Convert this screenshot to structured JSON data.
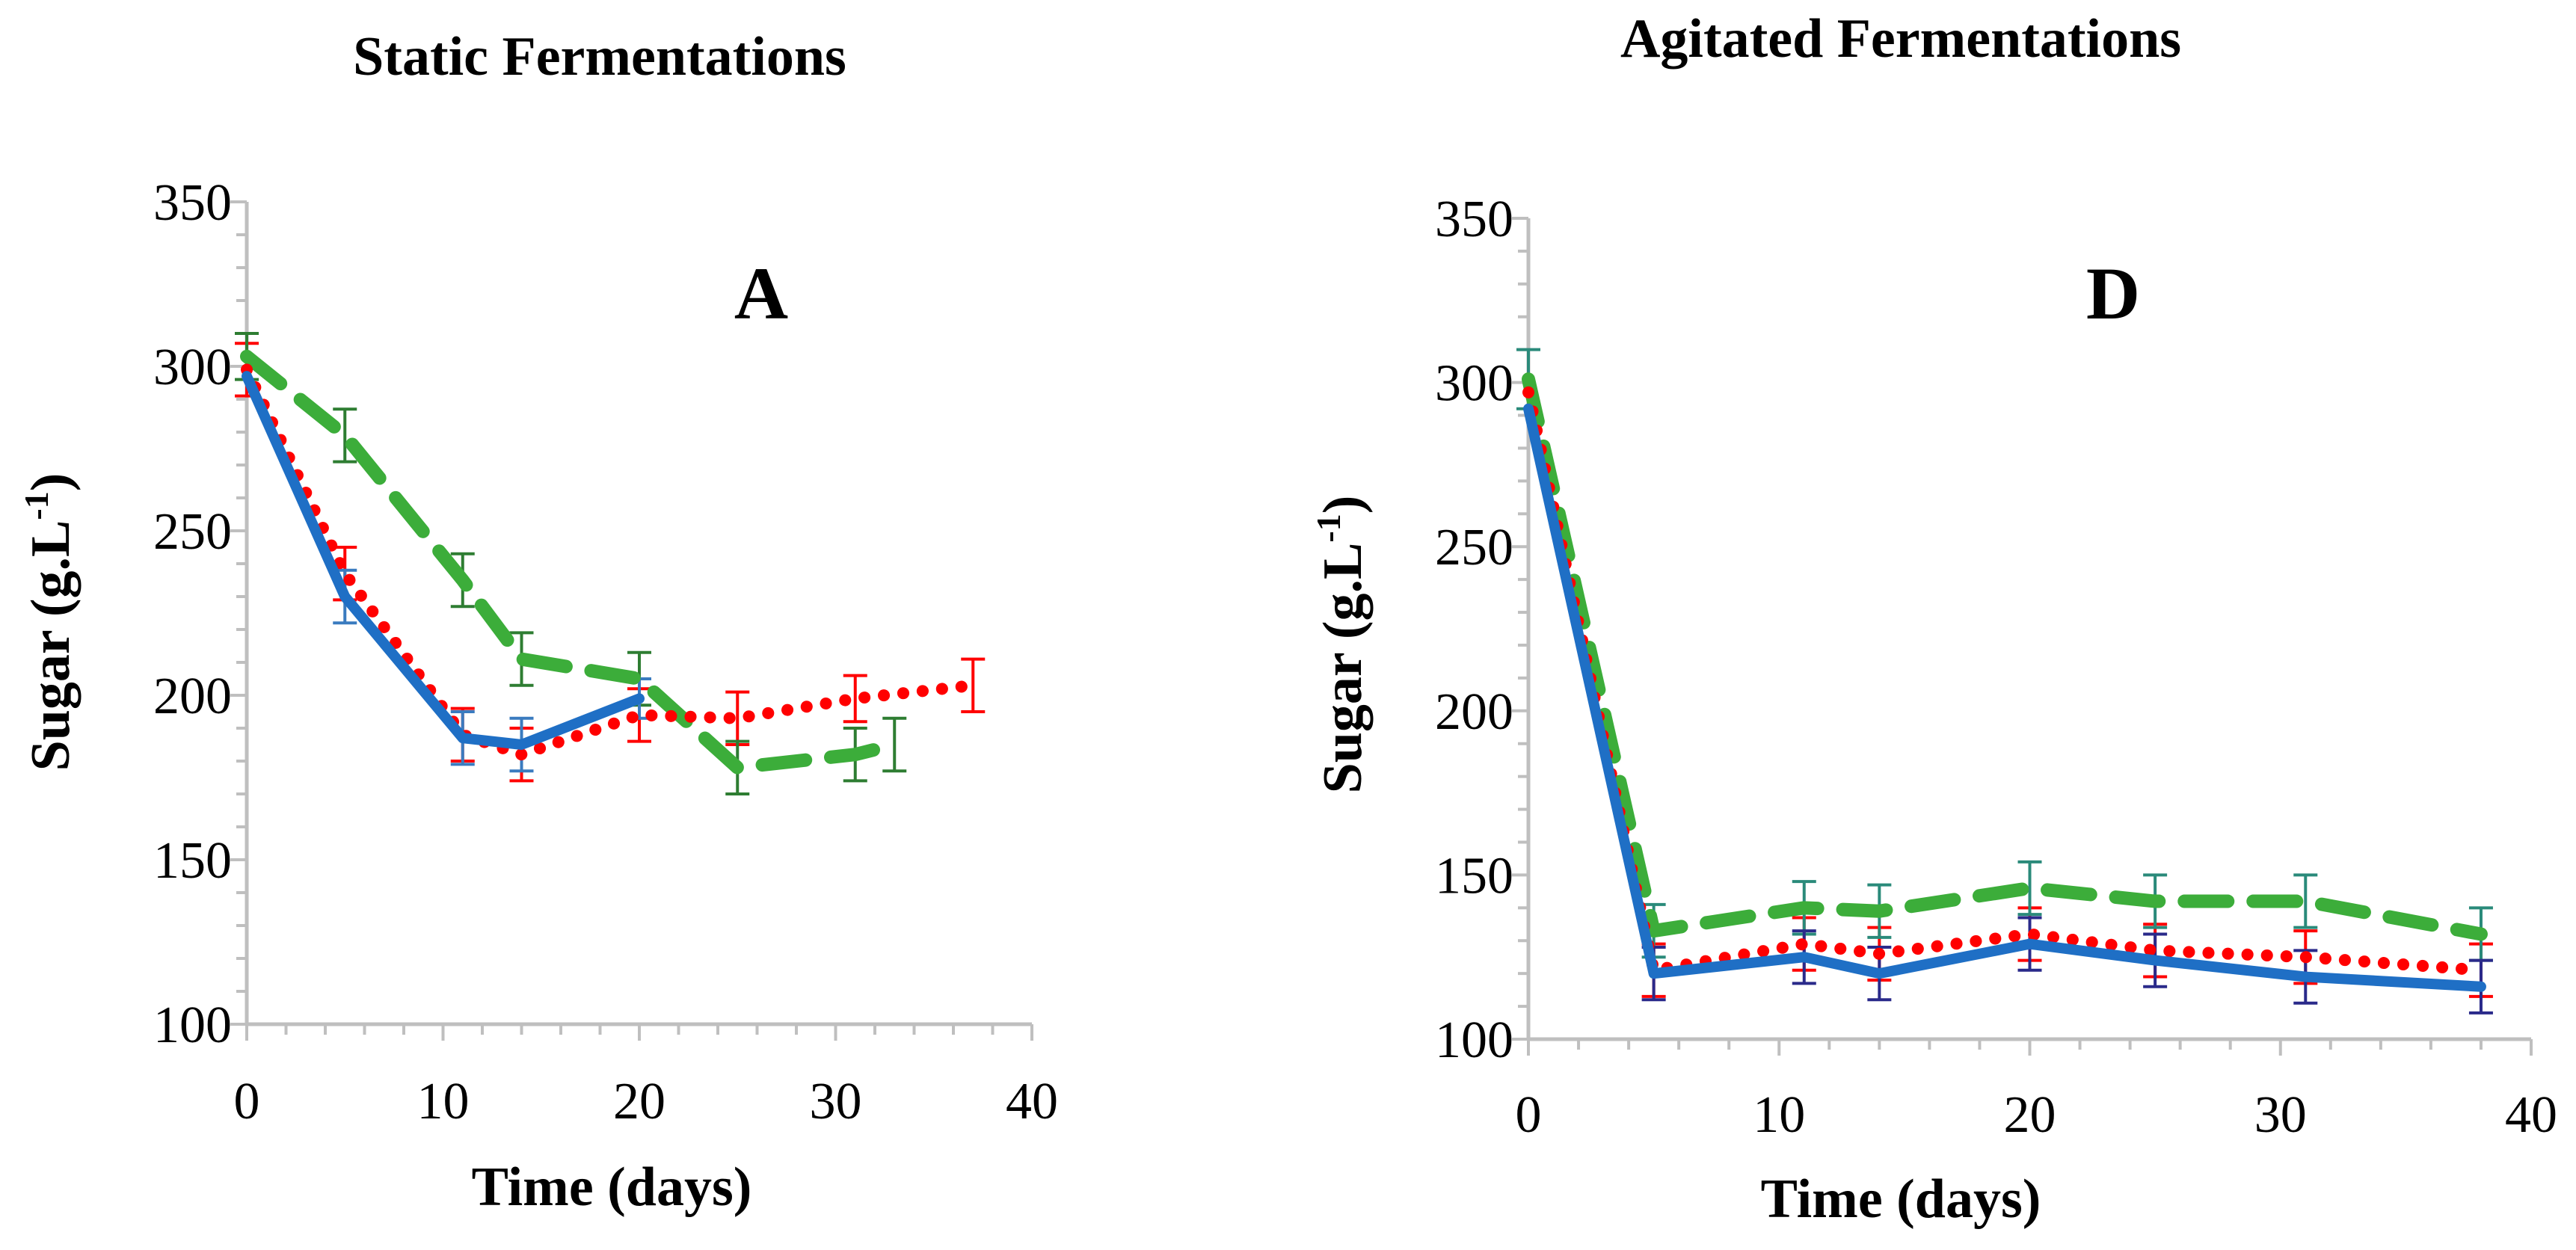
{
  "chart_data": [
    {
      "type": "line",
      "panel": "A",
      "title": "Static Fermentations",
      "xlabel": "Time (days)",
      "ylabel_main": "Sugar (g.L",
      "ylabel_sup": "-1",
      "ylabel_close": ")",
      "xlim": [
        0,
        40
      ],
      "ylim": [
        100,
        350
      ],
      "xticks": [
        "0",
        "10",
        "20",
        "30",
        "40"
      ],
      "yticks": [
        "100",
        "150",
        "200",
        "250",
        "300",
        "350"
      ],
      "grid": false,
      "series": [
        {
          "name": "red dotted",
          "color": "#ff0000",
          "style": "dotted",
          "x": [
            0,
            5,
            11,
            14,
            20,
            25,
            31,
            37
          ],
          "y": [
            299,
            237,
            188,
            182,
            194,
            193,
            199,
            203
          ],
          "err": [
            8,
            8,
            8,
            8,
            8,
            8,
            7,
            8
          ]
        },
        {
          "name": "green dashed",
          "color": "#3cad3a",
          "style": "dashed",
          "errColor": "#2e7d32",
          "x": [
            0,
            5,
            11,
            14,
            20,
            25,
            31,
            33
          ],
          "y": [
            303,
            279,
            235,
            211,
            205,
            178,
            182,
            185
          ],
          "err": [
            7,
            8,
            8,
            8,
            8,
            8,
            8,
            8
          ]
        },
        {
          "name": "blue solid",
          "color": "#1f6fc5",
          "style": "solid",
          "errColor": "#3a7bbf",
          "x": [
            0,
            5,
            11,
            14,
            20
          ],
          "y": [
            297,
            230,
            187,
            185,
            199
          ],
          "err": [
            0,
            8,
            8,
            8,
            6
          ]
        }
      ]
    },
    {
      "type": "line",
      "panel": "D",
      "title": "Agitated Fermentations",
      "xlabel": "Time (days)",
      "ylabel_main": "Sugar (g.L",
      "ylabel_sup": "-1",
      "ylabel_close": ")",
      "xlim": [
        0,
        40
      ],
      "ylim": [
        100,
        350
      ],
      "xticks": [
        "0",
        "10",
        "20",
        "30",
        "40"
      ],
      "yticks": [
        "100",
        "150",
        "200",
        "250",
        "300",
        "350"
      ],
      "grid": false,
      "series": [
        {
          "name": "red dotted",
          "color": "#ff0000",
          "style": "dotted",
          "x": [
            0,
            5,
            11,
            14,
            20,
            25,
            31,
            38
          ],
          "y": [
            297,
            121,
            129,
            126,
            132,
            127,
            125,
            121
          ],
          "err": [
            0,
            8,
            8,
            8,
            8,
            8,
            8,
            8
          ]
        },
        {
          "name": "green dashed",
          "color": "#3cad3a",
          "style": "dashed",
          "errColor": "#2a8a7a",
          "x": [
            0,
            5,
            11,
            14,
            20,
            25,
            31,
            38
          ],
          "y": [
            301,
            133,
            140,
            139,
            146,
            142,
            142,
            132
          ],
          "err": [
            9,
            8,
            8,
            8,
            8,
            8,
            8,
            8
          ]
        },
        {
          "name": "blue solid",
          "color": "#1f6fc5",
          "style": "solid",
          "errColor": "#2a2a8a",
          "x": [
            0,
            5,
            11,
            14,
            20,
            25,
            31,
            38
          ],
          "y": [
            292,
            120,
            125,
            120,
            129,
            124,
            119,
            116
          ],
          "err": [
            0,
            8,
            8,
            8,
            8,
            8,
            8,
            8
          ]
        }
      ]
    }
  ]
}
